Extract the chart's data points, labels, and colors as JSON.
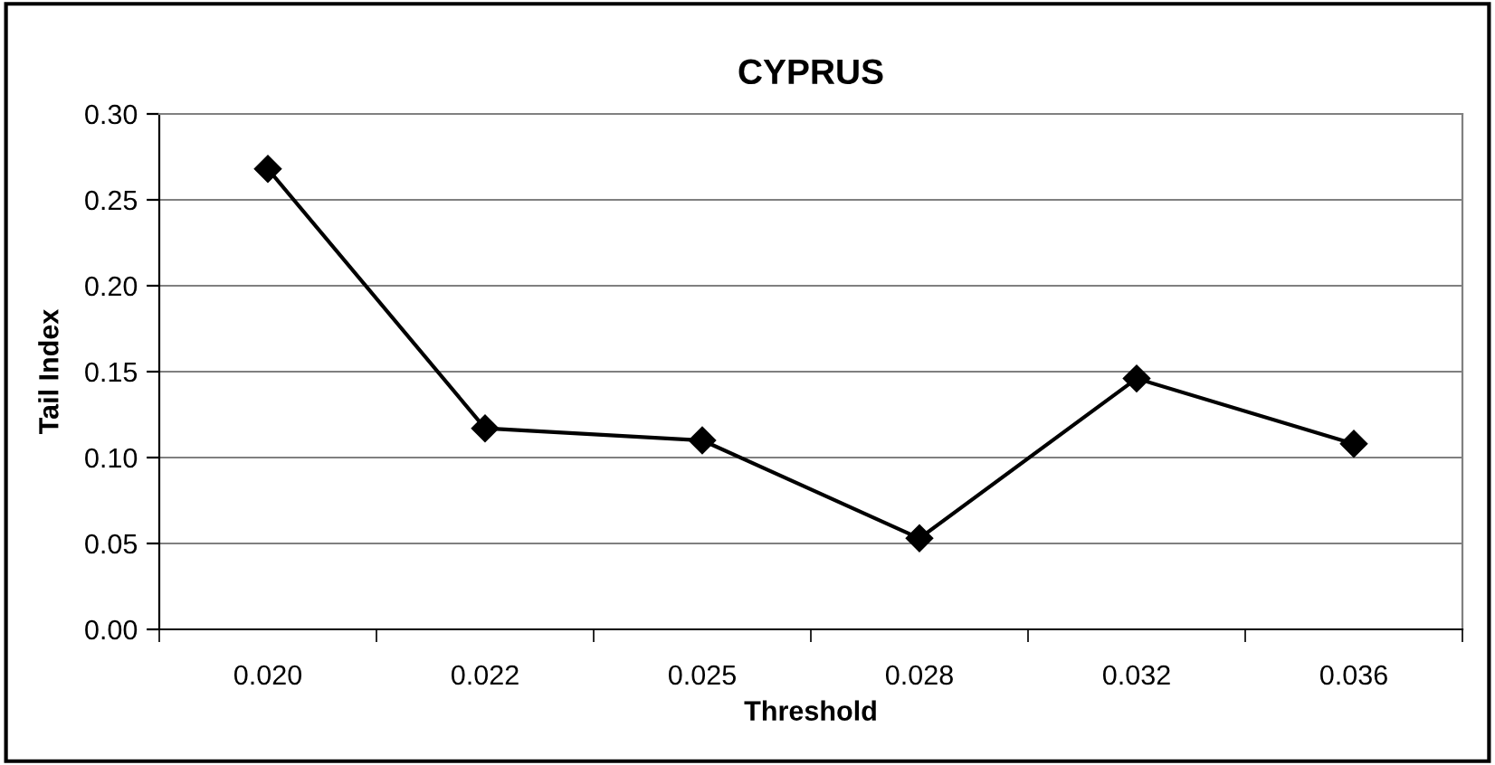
{
  "chart_data": {
    "type": "line",
    "title": "CYPRUS",
    "xlabel": "Threshold",
    "ylabel": "Tail Index",
    "categories": [
      "0.020",
      "0.022",
      "0.025",
      "0.028",
      "0.032",
      "0.036"
    ],
    "series": [
      {
        "color": "#000000",
        "values": [
          0.268,
          0.117,
          0.11,
          0.053,
          0.146,
          0.108
        ]
      }
    ],
    "ylim": [
      0,
      0.3
    ],
    "yticks": [
      {
        "value": 0,
        "label": "0.00"
      },
      {
        "value": 0.05,
        "label": "0.05"
      },
      {
        "value": 0.1,
        "label": "0.10"
      },
      {
        "value": 0.15,
        "label": "0.15"
      },
      {
        "value": 0.2,
        "label": "0.20"
      },
      {
        "value": 0.25,
        "label": "0.25"
      },
      {
        "value": 0.3,
        "label": "0.30"
      }
    ],
    "grid": "y",
    "marker": "diamond",
    "line_style": "solid"
  }
}
